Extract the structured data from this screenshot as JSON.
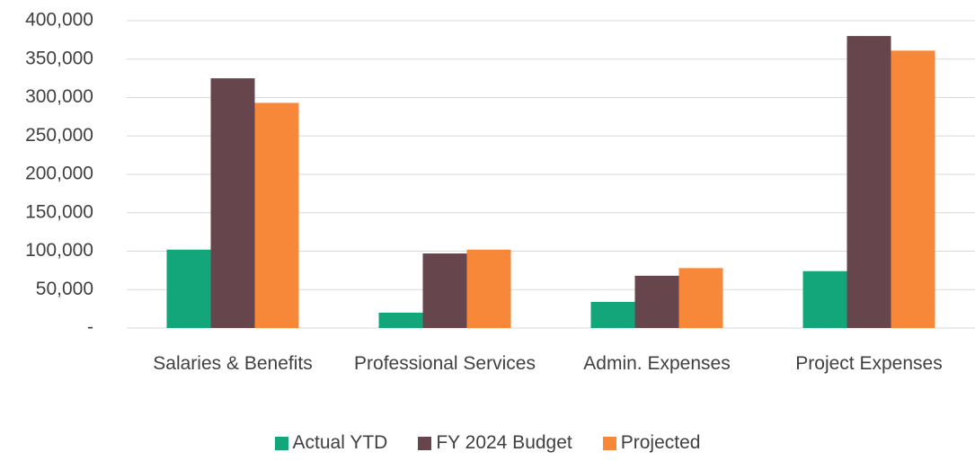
{
  "chart_data": {
    "type": "bar",
    "categories": [
      "Salaries & Benefits",
      "Professional Services",
      "Admin. Expenses",
      "Project Expenses"
    ],
    "series": [
      {
        "name": "Actual YTD",
        "color": "#13a67a",
        "values": [
          102000,
          20000,
          34000,
          74000
        ]
      },
      {
        "name": "FY 2024 Budget",
        "color": "#67454c",
        "values": [
          325000,
          97000,
          68000,
          380000
        ]
      },
      {
        "name": "Projected",
        "color": "#f7883a",
        "values": [
          293000,
          102000,
          78000,
          361000
        ]
      }
    ],
    "ylim": [
      0,
      400000
    ],
    "yticks": [
      {
        "value": 0,
        "label": "-"
      },
      {
        "value": 50000,
        "label": "50,000"
      },
      {
        "value": 100000,
        "label": "100,000"
      },
      {
        "value": 150000,
        "label": "150,000"
      },
      {
        "value": 200000,
        "label": "200,000"
      },
      {
        "value": 250000,
        "label": "250,000"
      },
      {
        "value": 300000,
        "label": "300,000"
      },
      {
        "value": 350000,
        "label": "350,000"
      },
      {
        "value": 400000,
        "label": "400,000"
      }
    ],
    "grid": true,
    "legend": "bottom"
  }
}
